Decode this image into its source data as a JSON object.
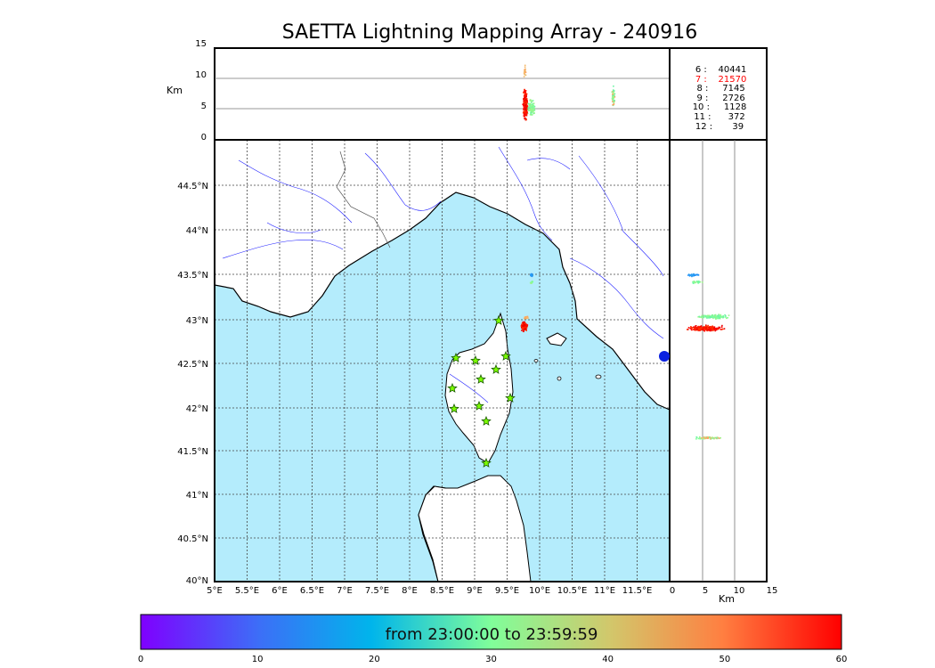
{
  "title": "SAETTA Lightning Mapping Array - 240916",
  "top_panel": {
    "ylabel": "Km",
    "yticks": [
      "15",
      "10",
      "5",
      "0"
    ]
  },
  "side_panel": {
    "xlabel": "Km",
    "xticks": [
      "0",
      "5",
      "10",
      "15"
    ]
  },
  "stations_summary": [
    {
      "n": "6",
      "count": "40441",
      "color": "#000000"
    },
    {
      "n": "7",
      "count": "21570",
      "color": "#ff0000"
    },
    {
      "n": "8",
      "count": "7145",
      "color": "#000000"
    },
    {
      "n": "9",
      "count": "2726",
      "color": "#000000"
    },
    {
      "n": "10",
      "count": "1128",
      "color": "#000000"
    },
    {
      "n": "11",
      "count": "372",
      "color": "#000000"
    },
    {
      "n": "12",
      "count": "39",
      "color": "#000000"
    }
  ],
  "map": {
    "lat_labels": [
      "44.5°N",
      "44°N",
      "43.5°N",
      "43°N",
      "42.5°N",
      "42°N",
      "41.5°N",
      "41°N",
      "40.5°N",
      "40°N"
    ],
    "lon_labels": [
      "5°E",
      "5.5°E",
      "6°E",
      "6.5°E",
      "7°E",
      "7.5°E",
      "8°E",
      "8.5°E",
      "9°E",
      "9.5°E",
      "10°E",
      "10.5°E",
      "11°E",
      "11.5°E"
    ],
    "sea_color": "#b4ecfc",
    "land_color": "#ffffff",
    "station_marker": "star",
    "station_color": "#7cfc00"
  },
  "colorbar": {
    "label": "from 23:00:00 to 23:59:59",
    "ticks": [
      "0",
      "10",
      "20",
      "30",
      "40",
      "50",
      "60"
    ],
    "colormap": "rainbow"
  }
}
